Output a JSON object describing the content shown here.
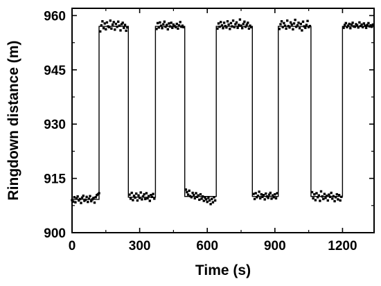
{
  "chart_data": {
    "type": "line",
    "title": "",
    "xlabel": "Time (s)",
    "ylabel": "Ringdown distance (m)",
    "xlim": [
      0,
      1340
    ],
    "ylim": [
      900,
      962
    ],
    "x_ticks": [
      0,
      300,
      600,
      900,
      1200
    ],
    "x_tick_labels": [
      "0",
      "300",
      "600",
      "900",
      "1200"
    ],
    "y_ticks": [
      900,
      915,
      930,
      945,
      960
    ],
    "y_tick_labels": [
      "900",
      "915",
      "930",
      "945",
      "960"
    ],
    "grid": false,
    "legend": "none",
    "marker": "square",
    "colors": {
      "series": "#000000",
      "axes": "#000000",
      "background": "#ffffff"
    },
    "segments": [
      {
        "x_start": 0,
        "x_end": 120,
        "level": 909.2,
        "x_points": [
          0,
          5,
          10,
          15,
          20,
          25,
          30,
          35,
          40,
          45,
          50,
          55,
          60,
          65,
          70,
          75,
          80,
          85,
          90,
          95,
          100,
          105,
          110,
          115,
          120
        ],
        "y_points": [
          909,
          908.6,
          909.8,
          908.4,
          909.5,
          910,
          908.9,
          909.3,
          908.2,
          909.7,
          910.2,
          908.8,
          909.1,
          909.9,
          908.5,
          909.4,
          910.1,
          908.7,
          909.2,
          909.6,
          908.3,
          909.8,
          910.4,
          910.6,
          910.9
        ]
      },
      {
        "x_start": 120,
        "x_end": 250,
        "level": 957.0,
        "x_points": [
          125,
          130,
          135,
          140,
          145,
          150,
          155,
          160,
          165,
          170,
          175,
          180,
          185,
          190,
          195,
          200,
          205,
          210,
          215,
          220,
          225,
          230,
          235,
          240,
          245
        ],
        "y_points": [
          955.6,
          957.3,
          958.4,
          956.5,
          957.8,
          956.2,
          958.1,
          957,
          956.8,
          958.6,
          956.4,
          957.5,
          958.2,
          956.1,
          957.7,
          956.9,
          958.3,
          957.2,
          955.9,
          957.6,
          958,
          956.6,
          957.4,
          955.8,
          956.7
        ]
      },
      {
        "x_start": 250,
        "x_end": 370,
        "level": 909.8,
        "x_points": [
          255,
          260,
          265,
          270,
          275,
          280,
          285,
          290,
          295,
          300,
          305,
          310,
          315,
          320,
          325,
          330,
          335,
          340,
          345,
          350,
          355,
          360,
          365
        ],
        "y_points": [
          910.5,
          909.4,
          911,
          909,
          910.2,
          909.7,
          910.8,
          908.9,
          910.3,
          909.6,
          911.1,
          909.2,
          910,
          910.6,
          909.3,
          910.9,
          909.5,
          910.1,
          908.8,
          910.4,
          909.9,
          910.7,
          909.4
        ]
      },
      {
        "x_start": 370,
        "x_end": 500,
        "level": 957.0,
        "x_points": [
          375,
          380,
          385,
          390,
          395,
          400,
          405,
          410,
          415,
          420,
          425,
          430,
          435,
          440,
          445,
          450,
          455,
          460,
          465,
          470,
          475,
          480,
          485,
          490,
          495
        ],
        "y_points": [
          956.3,
          957.9,
          956.7,
          958.1,
          957.2,
          956.5,
          957.6,
          958.3,
          956.9,
          957.4,
          956.2,
          957.8,
          957,
          958,
          956.6,
          957.5,
          957.1,
          956.8,
          957.7,
          956.4,
          957.3,
          958.2,
          956.9,
          957.2,
          956.8
        ]
      },
      {
        "x_start": 500,
        "x_end": 640,
        "level": 910.0,
        "x_points": [
          505,
          510,
          515,
          520,
          525,
          530,
          535,
          540,
          545,
          550,
          555,
          560,
          565,
          570,
          575,
          580,
          585,
          590,
          595,
          600,
          605,
          610,
          615,
          620,
          625,
          630,
          635
        ],
        "y_points": [
          911.9,
          911.2,
          910.5,
          911.6,
          910.1,
          909.8,
          911,
          910.4,
          909.5,
          910.9,
          909.9,
          910.3,
          909.1,
          910.6,
          909.4,
          910,
          908.8,
          909.7,
          909.2,
          908.5,
          909.6,
          908.9,
          907.9,
          909.3,
          908.4,
          909.8,
          908.9
        ]
      },
      {
        "x_start": 640,
        "x_end": 800,
        "level": 957.0,
        "x_points": [
          645,
          650,
          655,
          660,
          665,
          670,
          675,
          680,
          685,
          690,
          695,
          700,
          705,
          710,
          715,
          720,
          725,
          730,
          735,
          740,
          745,
          750,
          755,
          760,
          765,
          770,
          775,
          780,
          785,
          790,
          795
        ],
        "y_points": [
          956.4,
          957.8,
          956.9,
          958.2,
          957.3,
          956.5,
          958,
          957.1,
          956.7,
          958.4,
          957.5,
          956.3,
          957.9,
          957,
          958.6,
          956.8,
          957.6,
          958.1,
          956.6,
          957.4,
          958.9,
          957.2,
          956.5,
          957.7,
          958.3,
          956.9,
          957.5,
          958,
          956.4,
          957.2,
          956.8
        ]
      },
      {
        "x_start": 800,
        "x_end": 915,
        "level": 910.0,
        "x_points": [
          805,
          810,
          815,
          820,
          825,
          830,
          835,
          840,
          845,
          850,
          855,
          860,
          865,
          870,
          875,
          880,
          885,
          890,
          895,
          900,
          905,
          910
        ],
        "y_points": [
          910.7,
          909.3,
          910.9,
          909.8,
          910.2,
          911.3,
          909.5,
          910.6,
          909.9,
          910.4,
          909.2,
          910.8,
          910,
          909.6,
          910.5,
          911,
          909.4,
          910.3,
          909.8,
          910.6,
          909.5,
          910.9
        ]
      },
      {
        "x_start": 915,
        "x_end": 1060,
        "level": 957.0,
        "x_points": [
          920,
          925,
          930,
          935,
          940,
          945,
          950,
          955,
          960,
          965,
          970,
          975,
          980,
          985,
          990,
          995,
          1000,
          1005,
          1010,
          1015,
          1020,
          1025,
          1030,
          1035,
          1040,
          1045,
          1050,
          1055
        ],
        "y_points": [
          956.3,
          957.6,
          958.4,
          956.8,
          957.9,
          957.2,
          956.4,
          958.6,
          957.1,
          956.7,
          958.1,
          957.5,
          956.2,
          957.8,
          958.8,
          956.9,
          957.3,
          958,
          956.5,
          957.7,
          955.9,
          958.3,
          957,
          956.6,
          957.4,
          958.5,
          956.8,
          957.1
        ]
      },
      {
        "x_start": 1060,
        "x_end": 1200,
        "level": 910.0,
        "x_points": [
          1065,
          1070,
          1075,
          1080,
          1085,
          1090,
          1095,
          1100,
          1105,
          1110,
          1115,
          1120,
          1125,
          1130,
          1135,
          1140,
          1145,
          1150,
          1155,
          1160,
          1165,
          1170,
          1175,
          1180,
          1185,
          1190,
          1195
        ],
        "y_points": [
          911.2,
          909.5,
          910.6,
          909,
          910.9,
          909.8,
          910.3,
          908.8,
          911.4,
          910,
          909.3,
          910.7,
          909.6,
          910.2,
          908.9,
          910.5,
          909.9,
          911,
          909.4,
          910.1,
          908.7,
          909.8,
          910.6,
          909.2,
          910.4,
          908.9,
          909.9
        ]
      },
      {
        "x_start": 1200,
        "x_end": 1340,
        "level": 957.0,
        "x_points": [
          1205,
          1210,
          1215,
          1220,
          1225,
          1230,
          1235,
          1240,
          1245,
          1250,
          1255,
          1260,
          1265,
          1270,
          1275,
          1280,
          1285,
          1290,
          1295,
          1300,
          1305,
          1310,
          1315,
          1320,
          1325,
          1330,
          1335
        ],
        "y_points": [
          956.6,
          957.4,
          957.9,
          956.8,
          957.2,
          957.7,
          956.5,
          957.5,
          958,
          957,
          956.9,
          957.6,
          957.3,
          956.7,
          958.1,
          957.1,
          957.5,
          956.8,
          957.8,
          957.2,
          956.6,
          957.4,
          957.9,
          957,
          957.3,
          956.9,
          957.5
        ]
      }
    ]
  }
}
